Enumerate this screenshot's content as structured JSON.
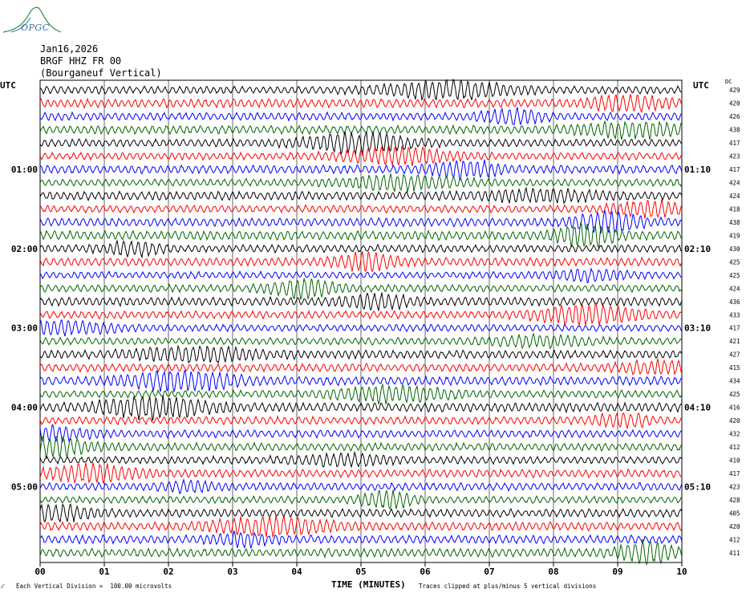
{
  "logo": {
    "text": "OPGC",
    "colors": {
      "arc": "#2e8b3a",
      "text": "#3a6fa6"
    }
  },
  "header": {
    "date": "Jan16,2026",
    "station": "BRGF HHZ FR 00",
    "location": "(Bourganeuf Vertical)"
  },
  "axes": {
    "left_label": "UTC",
    "right_label": "UTC",
    "dc_label": "DC",
    "x_title": "TIME (MINUTES)",
    "footer_left": "Each Vertical Division =  100.00 microvolts",
    "footer_right": "Traces clipped at plus/minus 5 vertical divisions"
  },
  "chart_data": {
    "type": "line",
    "title": "",
    "xlabel": "TIME (MINUTES)",
    "ylabel": "",
    "xlim": [
      0,
      10
    ],
    "x_ticks": [
      "00",
      "01",
      "02",
      "03",
      "04",
      "05",
      "06",
      "07",
      "08",
      "09",
      "10"
    ],
    "grid": true,
    "trace_colors": [
      "#000000",
      "#ff0000",
      "#0000ff",
      "#006400"
    ],
    "left_hour_labels": [
      {
        "row": 6,
        "label": "01:00"
      },
      {
        "row": 12,
        "label": "02:00"
      },
      {
        "row": 18,
        "label": "03:00"
      },
      {
        "row": 24,
        "label": "04:00"
      },
      {
        "row": 30,
        "label": "05:00"
      }
    ],
    "right_hour_labels": [
      {
        "row": 6,
        "label": "01:10"
      },
      {
        "row": 12,
        "label": "02:10"
      },
      {
        "row": 18,
        "label": "03:10"
      },
      {
        "row": 24,
        "label": "04:10"
      },
      {
        "row": 30,
        "label": "05:10"
      }
    ],
    "dc_offsets": [
      429,
      420,
      426,
      438,
      417,
      423,
      417,
      424,
      424,
      418,
      438,
      419,
      430,
      425,
      425,
      424,
      436,
      433,
      417,
      421,
      427,
      415,
      434,
      425,
      416,
      420,
      432,
      412,
      410,
      417,
      423,
      428,
      405,
      420,
      412,
      411
    ],
    "rows": 36
  }
}
